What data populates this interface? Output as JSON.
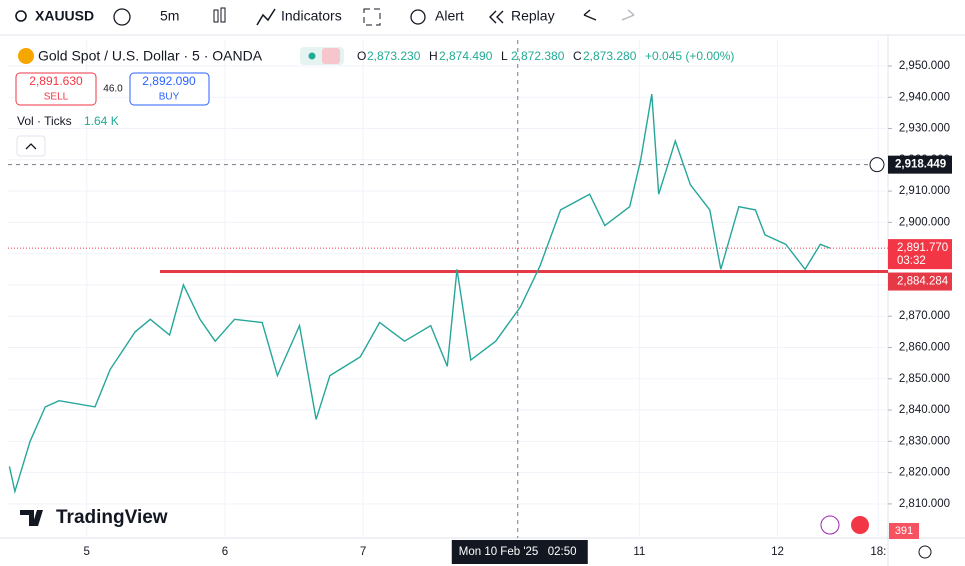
{
  "toolbar": {
    "symbol": "XAUUSD",
    "interval": "5m",
    "indicators": "Indicators",
    "alert": "Alert",
    "replay": "Replay"
  },
  "legend": {
    "title": "Gold Spot / U.S. Dollar · 5 · OANDA",
    "ohlc": [
      {
        "key": "O",
        "value": "2,873.230"
      },
      {
        "key": "H",
        "value": "2,874.490"
      },
      {
        "key": "L",
        "value": "2,872.380"
      },
      {
        "key": "C",
        "value": "2,873.280"
      }
    ],
    "change": "+0.045 (+0.00%)",
    "sell_price": "2,891.630",
    "sell": "SELL",
    "spread": "46.0",
    "buy_price": "2,892.090",
    "buy": "BUY",
    "volume_label": "Vol · Ticks",
    "volume_value": "1.64 K"
  },
  "brand": "TradingView",
  "volume_last": "391",
  "chart_data": {
    "type": "line",
    "color": "#26a69a",
    "x": [
      -0.56,
      -0.52,
      -0.41,
      -0.3,
      -0.2,
      0.06,
      0.17,
      0.35,
      0.46,
      0.6,
      0.7,
      0.82,
      0.93,
      1.07,
      1.27,
      1.38,
      1.54,
      1.66,
      1.76,
      1.98,
      2.12,
      2.3,
      2.49,
      2.61,
      2.68,
      2.78,
      2.96,
      3.14,
      3.28,
      3.43,
      3.64,
      3.75,
      3.93,
      4.01,
      4.09,
      4.14,
      4.26,
      4.37,
      4.51,
      4.59,
      4.72,
      4.84,
      4.91,
      5.06,
      5.2,
      5.31,
      5.38
    ],
    "values": [
      2822,
      2814,
      2830,
      2841,
      2843,
      2841,
      2853,
      2865,
      2869,
      2864,
      2880,
      2869,
      2862,
      2869,
      2868,
      2851,
      2867,
      2837,
      2851,
      2857,
      2868,
      2862,
      2867,
      2854,
      2885,
      2856,
      2862,
      2873,
      2886,
      2904,
      2909,
      2899,
      2905,
      2920,
      2941,
      2909,
      2926,
      2912,
      2904,
      2885,
      2905,
      2904,
      2896,
      2893,
      2885,
      2893,
      2891.77
    ],
    "xlim": [
      -0.57,
      5.8
    ],
    "xticks": [
      {
        "value": 0,
        "label": "5"
      },
      {
        "value": 1,
        "label": "6"
      },
      {
        "value": 2,
        "label": "7"
      },
      {
        "value": 4,
        "label": "11"
      },
      {
        "value": 5,
        "label": "12"
      },
      {
        "value": 5.73,
        "label": "18:"
      }
    ],
    "ylim": [
      2799.1,
      2958.3
    ],
    "yticks": [
      {
        "value": 2810,
        "label": "2,810.000"
      },
      {
        "value": 2820,
        "label": "2,820.000"
      },
      {
        "value": 2830,
        "label": "2,830.000"
      },
      {
        "value": 2840,
        "label": "2,840.000"
      },
      {
        "value": 2850,
        "label": "2,850.000"
      },
      {
        "value": 2860,
        "label": "2,860.000"
      },
      {
        "value": 2870,
        "label": "2,870.000"
      },
      {
        "value": 2880,
        "label": "2,880.000"
      },
      {
        "value": 2890,
        "label": "2,890.000"
      },
      {
        "value": 2900,
        "label": "2,900.000"
      },
      {
        "value": 2910,
        "label": "2,910.000"
      },
      {
        "value": 2920,
        "label": "2,920.000"
      },
      {
        "value": 2930,
        "label": "2,930.000"
      },
      {
        "value": 2940,
        "label": "2,940.000"
      },
      {
        "value": 2950,
        "label": "2,950.000"
      }
    ],
    "grid": true,
    "support": {
      "value": 2884.284,
      "label": "2,884.284",
      "color": "#e53945",
      "start": 0.53
    },
    "last": {
      "value": 2891.77,
      "label": "2,891.770",
      "countdown": "03:32",
      "color": "#f23645"
    },
    "crosshair": {
      "x": 3.12,
      "x_label": "Mon 10 Feb '25",
      "time_label": "02:50",
      "y": 2918.449,
      "y_label": "2,918.449"
    }
  }
}
